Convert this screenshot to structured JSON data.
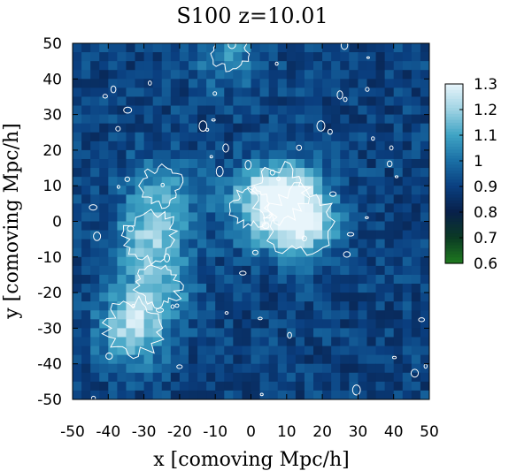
{
  "chart_data": {
    "type": "heatmap",
    "title": "S100 z=10.01",
    "xlabel": "x [comoving Mpc/h]",
    "ylabel": "y [comoving Mpc/h]",
    "xlim": [
      -50,
      50
    ],
    "ylim": [
      -50,
      50
    ],
    "x_ticks": [
      -50,
      -40,
      -30,
      -20,
      -10,
      0,
      10,
      20,
      30,
      40,
      50
    ],
    "y_ticks": [
      -50,
      -40,
      -30,
      -20,
      -10,
      0,
      10,
      20,
      30,
      40,
      50
    ],
    "colorbar": {
      "range": [
        0.6,
        1.3
      ],
      "ticks": [
        "0.6",
        "0.7",
        "0.8",
        "0.9",
        "1",
        "1.1",
        "1.2",
        "1.3"
      ],
      "colors": [
        "#1f7a1f",
        "#0b3a24",
        "#08204a",
        "#0a3f80",
        "#1a6fa5",
        "#3fa3c4",
        "#9fd3e3",
        "#e8f5fb"
      ]
    },
    "grid": false,
    "legend": "colorbar-right",
    "peaks": [
      {
        "x": 14,
        "y": 0,
        "value": 1.3
      },
      {
        "x": 8,
        "y": 8,
        "value": 1.2
      },
      {
        "x": -28,
        "y": -4,
        "value": 1.15
      },
      {
        "x": -33,
        "y": -30,
        "value": 1.2
      },
      {
        "x": -26,
        "y": -18,
        "value": 1.1
      },
      {
        "x": -25,
        "y": 10,
        "value": 1.05
      },
      {
        "x": -6,
        "y": 48,
        "value": 1.05
      },
      {
        "x": 0,
        "y": 4,
        "value": 1.05
      }
    ]
  }
}
